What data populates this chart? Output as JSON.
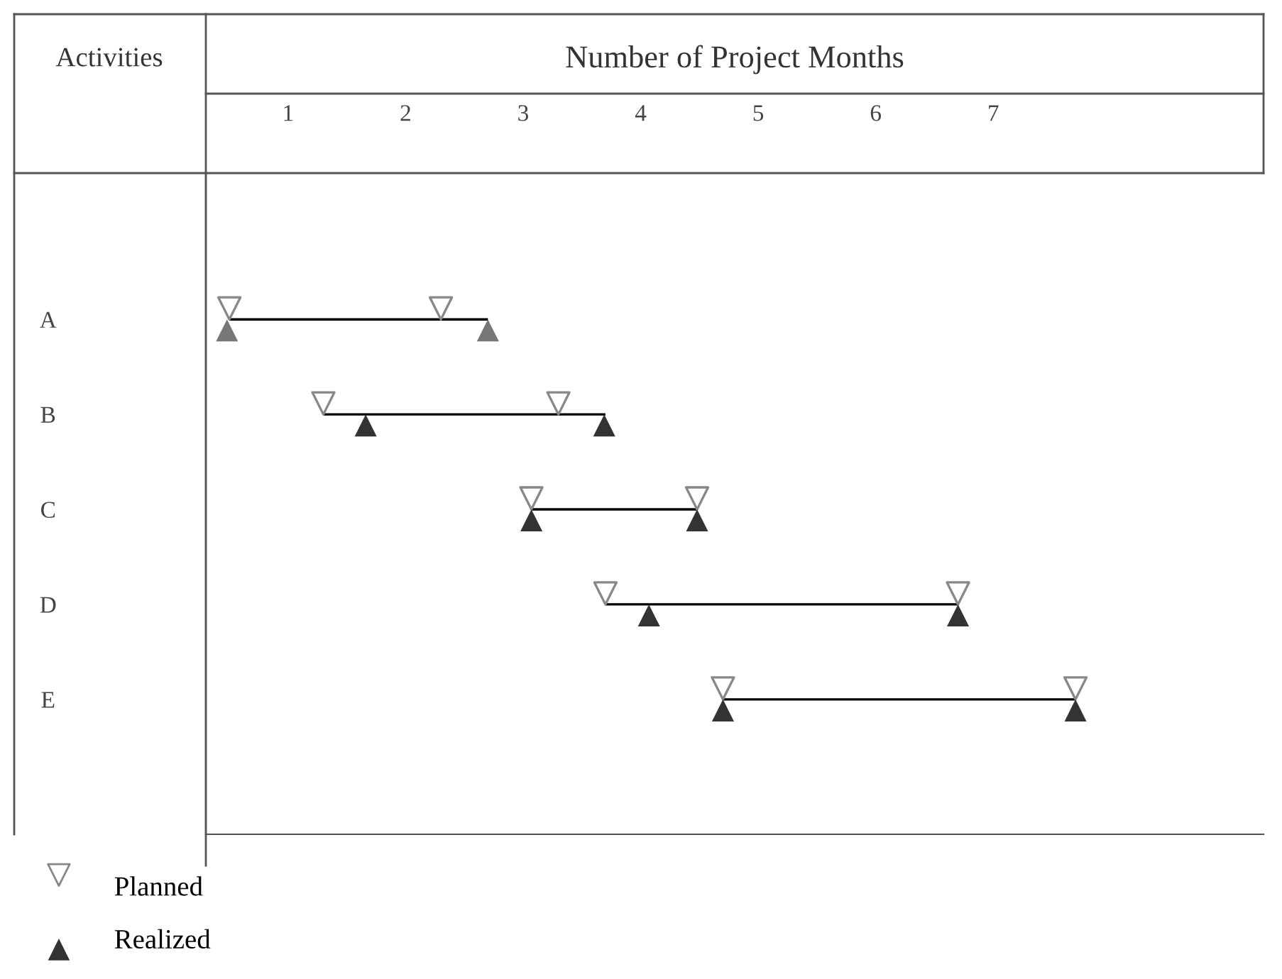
{
  "chart_data": {
    "type": "bar",
    "orientation": "horizontal",
    "xlabel": "Number of Project Months",
    "ylabel": "Activities",
    "categories": [
      "A",
      "B",
      "C",
      "D",
      "E"
    ],
    "base": [
      0.5,
      1.3,
      3.07,
      3.7,
      4.7
    ],
    "values": [
      2.2,
      2.4,
      1.41,
      3.0,
      3.0
    ],
    "color": "#000000",
    "xlim": [
      0.3,
      9.3
    ],
    "xticks": [
      1,
      2,
      3,
      4,
      5,
      6,
      7
    ],
    "grid": false,
    "legend": "bottom left",
    "series": [
      {
        "type": "scatter",
        "name": "Planned",
        "marker": "triangle_down",
        "color": "#ffffff",
        "values": [
          0.5,
          1.3,
          3.07,
          3.7,
          4.7
        ]
      },
      {
        "type": "scatter",
        "marker": "triangle_down",
        "color": "#ffffff",
        "values": [
          2.3,
          3.3,
          4.48,
          6.7,
          7.7
        ]
      },
      {
        "type": "scatter",
        "name": "Realized",
        "marker": "triangle_up",
        "color": "#333333",
        "colors": [
          "#777777",
          "#333333",
          "#333333",
          "#333333",
          "#333333"
        ],
        "values": [
          0.48,
          1.66,
          3.07,
          4.07,
          4.7
        ]
      },
      {
        "type": "scatter",
        "marker": "triangle_up",
        "color": "#333333",
        "colors": [
          "#777777",
          "#333333",
          "#333333",
          "#333333",
          "#333333"
        ],
        "values": [
          2.7,
          3.69,
          4.48,
          6.7,
          7.7
        ]
      }
    ]
  }
}
